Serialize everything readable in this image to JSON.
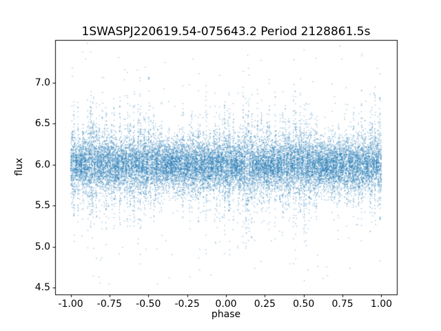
{
  "chart_data": {
    "type": "scatter",
    "title": "1SWASPJ220619.54-075643.2 Period 2128861.5s",
    "xlabel": "phase",
    "ylabel": "flux",
    "xlim": [
      -1.1,
      1.1
    ],
    "ylim": [
      4.42,
      7.52
    ],
    "xticks": [
      -1.0,
      -0.75,
      -0.5,
      -0.25,
      0.0,
      0.25,
      0.5,
      0.75,
      1.0
    ],
    "xtick_labels": [
      "-1.00",
      "-0.75",
      "-0.50",
      "-0.25",
      "0.00",
      "0.25",
      "0.50",
      "0.75",
      "1.00"
    ],
    "yticks": [
      4.5,
      5.0,
      5.5,
      6.0,
      6.5,
      7.0
    ],
    "ytick_labels": [
      "4.5",
      "5.0",
      "5.5",
      "6.0",
      "6.5",
      "7.0"
    ],
    "marker_color": "#1f77b4",
    "marker_size_px": 1,
    "grid": false,
    "legend": "none",
    "n_points": 22000,
    "x_data_range": [
      -1.0,
      1.0
    ],
    "y_mean": 6.0,
    "y_core_spread": 0.15,
    "y_min_observed": 4.55,
    "y_max_observed": 7.38,
    "pattern": "dense horizontal band of flux near 6.0 across all phases, with many narrow vertical high-variance columns (spikes reaching ~7.3 above and ~4.6 below); column pattern repeats with phase period 1 so the [-1,0] half mirrors the [0,1] half; sparse isolated outliers near flux 4.55-4.7 and 7.2-7.4"
  }
}
